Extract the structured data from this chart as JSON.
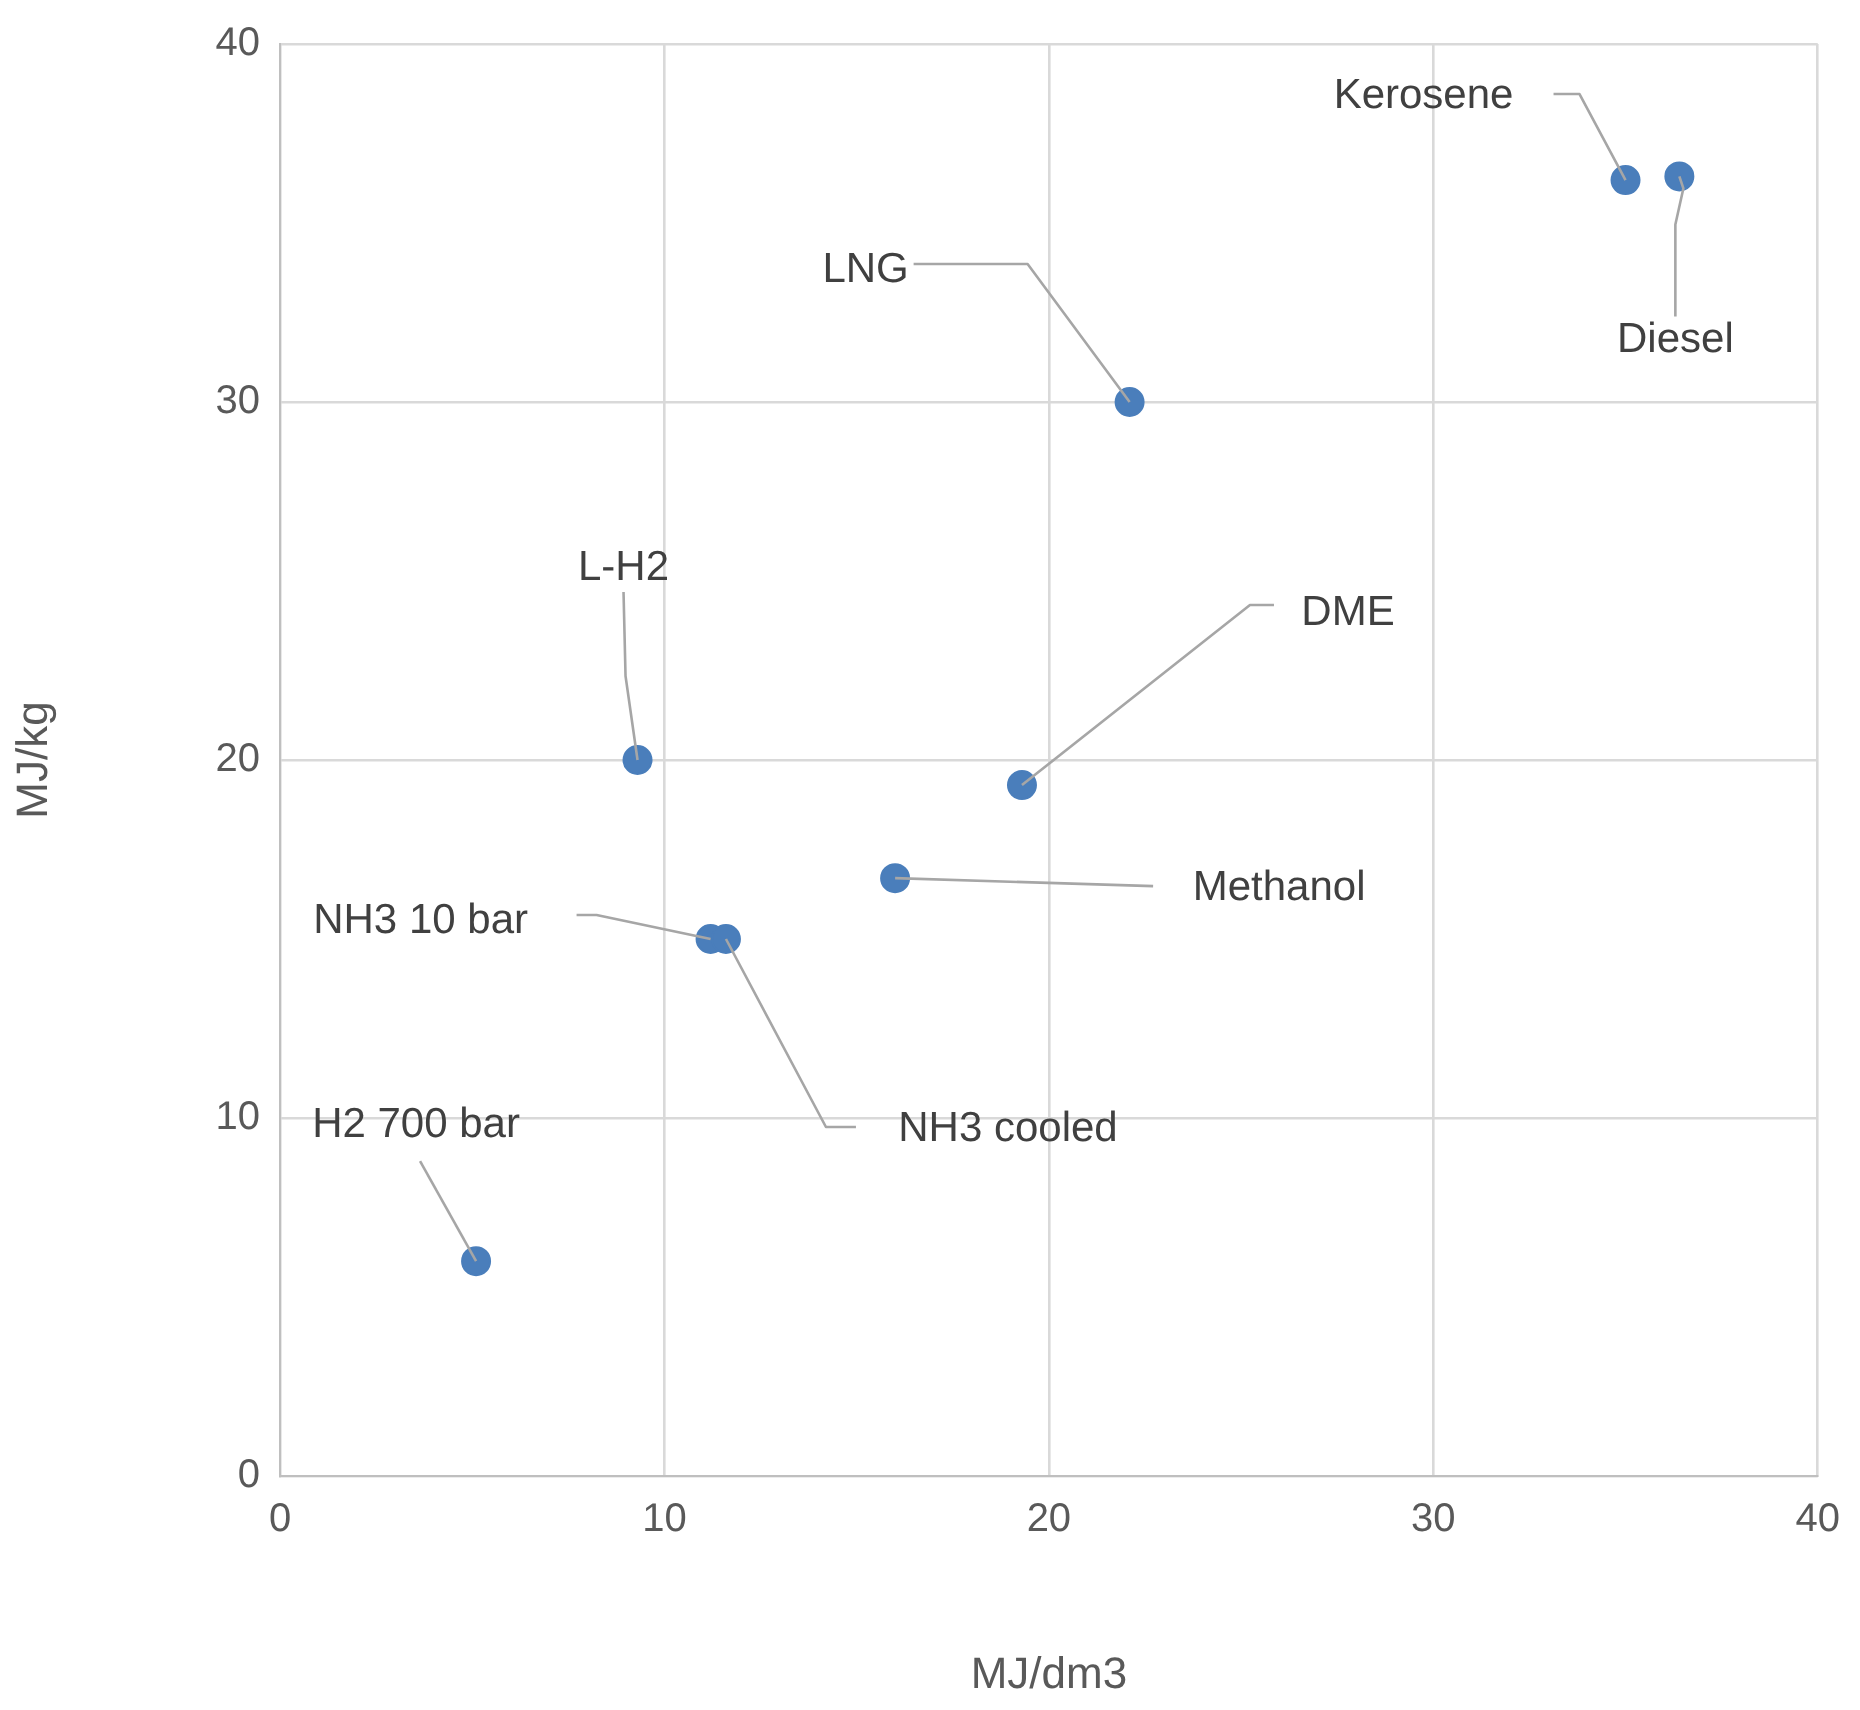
{
  "chart_data": {
    "type": "scatter",
    "xlabel": "MJ/dm3",
    "ylabel": "MJ/kg",
    "x": [
      5.1,
      9.3,
      11.2,
      11.6,
      16.0,
      19.3,
      22.1,
      35.0,
      36.4
    ],
    "values": [
      6.0,
      20.0,
      15.0,
      15.0,
      16.7,
      19.3,
      30.0,
      36.2,
      36.3
    ],
    "color": "#4a7ebb",
    "marker": "circle",
    "grid": true,
    "legend": false,
    "xlim": [
      0,
      40
    ],
    "xticks": [
      0,
      10,
      20,
      30,
      40
    ],
    "ylim": [
      0,
      40
    ],
    "yticks": [
      0,
      10,
      20,
      30,
      40
    ],
    "annotations": [
      {
        "text": "H2 700 bar",
        "x": 5.1,
        "y": 6.0
      },
      {
        "text": "L-H2",
        "x": 9.3,
        "y": 20.0
      },
      {
        "text": "NH3 10 bar",
        "x": 11.2,
        "y": 15.0
      },
      {
        "text": "NH3 cooled",
        "x": 11.6,
        "y": 15.0
      },
      {
        "text": "Methanol",
        "x": 16.0,
        "y": 16.7
      },
      {
        "text": "DME",
        "x": 19.3,
        "y": 19.3
      },
      {
        "text": "LNG",
        "x": 22.1,
        "y": 30.0
      },
      {
        "text": "Kerosene",
        "x": 35.0,
        "y": 36.2
      },
      {
        "text": "Diesel",
        "x": 36.4,
        "y": 36.3
      }
    ]
  }
}
